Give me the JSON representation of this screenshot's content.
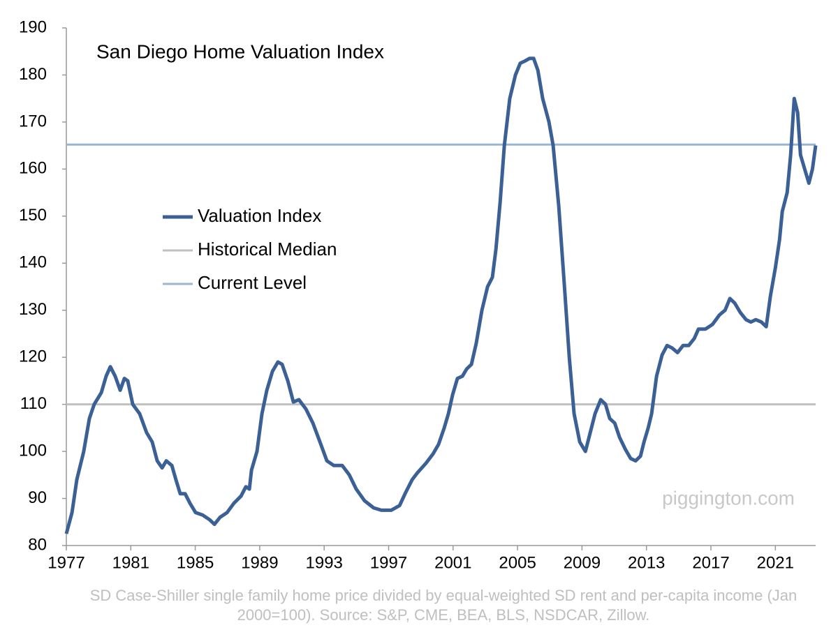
{
  "chart_data": {
    "type": "line",
    "title": "San Diego Home Valuation Index",
    "watermark": "piggington.com",
    "footnote": "SD Case-Shiller single family home price divided by equal-weighted SD rent and per-capita income (Jan 2000=100). Source: S&P, CME, BEA, BLS, NSDCAR, Zillow.",
    "xlim": [
      1977,
      2023.5
    ],
    "xticks": [
      1977,
      1981,
      1985,
      1989,
      1993,
      1997,
      2001,
      2005,
      2009,
      2013,
      2017,
      2021
    ],
    "ylim": [
      80,
      190
    ],
    "yticks": [
      80,
      90,
      100,
      110,
      120,
      130,
      140,
      150,
      160,
      170,
      180,
      190
    ],
    "x": [
      1977.0,
      1977.35,
      1977.65,
      1978.08,
      1978.43,
      1978.73,
      1979.17,
      1979.47,
      1979.73,
      1980.03,
      1980.34,
      1980.6,
      1980.81,
      1981.12,
      1981.55,
      1981.98,
      1982.33,
      1982.64,
      1982.94,
      1983.2,
      1983.55,
      1983.8,
      1984.07,
      1984.37,
      1984.67,
      1985.02,
      1985.45,
      1985.89,
      1986.19,
      1986.54,
      1986.97,
      1987.4,
      1987.84,
      1988.14,
      1988.36,
      1988.49,
      1988.83,
      1989.14,
      1989.44,
      1989.79,
      1990.13,
      1990.39,
      1990.74,
      1991.09,
      1991.43,
      1991.87,
      1992.3,
      1992.74,
      1993.17,
      1993.6,
      1994.12,
      1994.56,
      1994.99,
      1995.51,
      1996.07,
      1996.55,
      1997.16,
      1997.68,
      1998.02,
      1998.46,
      1998.8,
      1999.32,
      1999.76,
      2000.1,
      2000.45,
      2000.71,
      2000.97,
      2001.27,
      2001.58,
      2001.84,
      2002.14,
      2002.44,
      2002.79,
      2003.14,
      2003.44,
      2003.66,
      2003.92,
      2004.18,
      2004.52,
      2004.87,
      2005.17,
      2005.48,
      2005.74,
      2006.0,
      2006.26,
      2006.56,
      2006.95,
      2007.21,
      2007.56,
      2007.91,
      2008.21,
      2008.51,
      2008.86,
      2009.21,
      2009.51,
      2009.81,
      2010.16,
      2010.46,
      2010.72,
      2011.03,
      2011.33,
      2011.68,
      2012.02,
      2012.33,
      2012.63,
      2012.85,
      2013.11,
      2013.32,
      2013.63,
      2013.97,
      2014.28,
      2014.58,
      2014.93,
      2015.27,
      2015.62,
      2015.97,
      2016.23,
      2016.66,
      2017.1,
      2017.53,
      2017.88,
      2018.18,
      2018.48,
      2018.83,
      2019.18,
      2019.48,
      2019.78,
      2020.13,
      2020.43,
      2020.69,
      2021.0,
      2021.26,
      2021.43,
      2021.73,
      2021.95,
      2022.17,
      2022.38,
      2022.56,
      2022.82,
      2023.08,
      2023.3,
      2023.5
    ],
    "series": [
      {
        "name": "Valuation Index",
        "color": "#3b6096",
        "values": [
          82.5,
          87,
          94,
          100,
          107,
          110,
          112.5,
          116,
          118,
          116,
          113,
          115.5,
          115,
          110,
          108,
          104,
          102,
          98,
          96.5,
          98,
          97,
          94,
          91,
          91,
          89,
          87,
          86.5,
          85.5,
          84.5,
          86,
          87,
          89,
          90.5,
          92.5,
          92,
          96,
          100,
          108,
          113,
          117,
          119,
          118.5,
          115,
          110.5,
          111,
          109,
          106,
          102,
          98,
          97,
          97,
          95,
          92,
          89.5,
          88,
          87.5,
          87.5,
          88.5,
          91,
          94,
          95.5,
          97.5,
          99.5,
          101.5,
          105,
          108,
          112,
          115.5,
          116,
          117.5,
          118.5,
          123,
          130,
          135,
          137,
          143,
          153,
          165,
          175,
          180,
          182.5,
          183,
          183.5,
          183.5,
          181,
          175,
          170,
          165,
          152,
          135,
          120,
          108,
          102,
          100,
          104,
          108,
          111,
          110,
          107,
          106,
          103,
          100.5,
          98.5,
          98,
          99,
          102,
          105,
          108,
          116,
          120.5,
          122.5,
          122,
          121,
          122.5,
          122.5,
          124,
          126,
          126,
          127,
          129,
          130,
          132.5,
          131.5,
          129.5,
          128,
          127.5,
          128,
          127.5,
          126.5,
          133,
          139,
          145,
          151,
          155,
          163,
          175,
          172,
          163,
          160,
          157,
          160,
          165
        ]
      }
    ],
    "hlines": [
      {
        "name": "Historical Median",
        "color": "#c0c0c0",
        "value": 110
      },
      {
        "name": "Current Level",
        "color": "#9ab5d3",
        "value": 165.2
      }
    ]
  }
}
